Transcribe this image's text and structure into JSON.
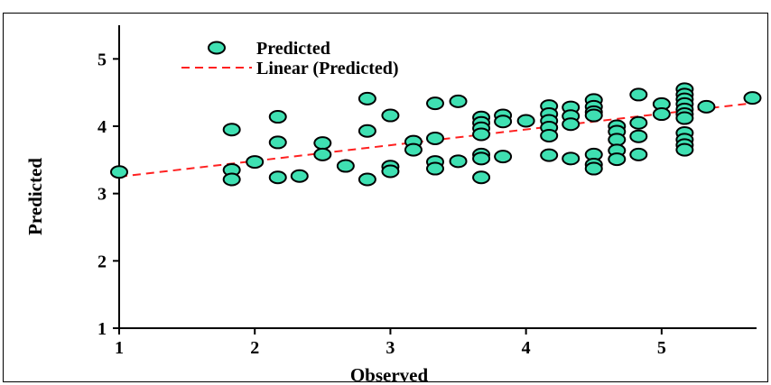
{
  "chart_data": {
    "type": "scatter",
    "xlabel": "Observed",
    "ylabel": "Predicted",
    "xlim": [
      1,
      5.7
    ],
    "ylim": [
      1,
      5.5
    ],
    "xticks": [
      "1",
      "2",
      "3",
      "4",
      "5"
    ],
    "yticks": [
      "1",
      "2",
      "3",
      "4",
      "5"
    ],
    "grid": false,
    "legend_position": "top-left",
    "legend": [
      "Predicted",
      "Linear (Predicted)"
    ],
    "colors": {
      "marker_fill": "#3fe0b2",
      "marker_edge": "#000000",
      "trendline": "#ff2020"
    },
    "series": [
      {
        "name": "Predicted",
        "points": [
          [
            1.0,
            3.32
          ],
          [
            1.83,
            3.95
          ],
          [
            1.83,
            3.35
          ],
          [
            1.83,
            3.21
          ],
          [
            2.0,
            3.47
          ],
          [
            2.17,
            4.14
          ],
          [
            2.17,
            3.76
          ],
          [
            2.17,
            3.24
          ],
          [
            2.33,
            3.26
          ],
          [
            2.5,
            3.75
          ],
          [
            2.5,
            3.58
          ],
          [
            2.67,
            3.41
          ],
          [
            2.83,
            4.41
          ],
          [
            2.83,
            3.93
          ],
          [
            2.83,
            3.21
          ],
          [
            3.0,
            4.16
          ],
          [
            3.0,
            3.4
          ],
          [
            3.0,
            3.33
          ],
          [
            3.17,
            3.77
          ],
          [
            3.17,
            3.65
          ],
          [
            3.33,
            4.34
          ],
          [
            3.33,
            3.82
          ],
          [
            3.33,
            3.47
          ],
          [
            3.33,
            3.37
          ],
          [
            3.5,
            4.37
          ],
          [
            3.5,
            3.48
          ],
          [
            3.67,
            4.13
          ],
          [
            3.67,
            4.05
          ],
          [
            3.67,
            3.97
          ],
          [
            3.67,
            3.88
          ],
          [
            3.67,
            3.58
          ],
          [
            3.67,
            3.52
          ],
          [
            3.67,
            3.24
          ],
          [
            3.83,
            4.16
          ],
          [
            3.83,
            4.07
          ],
          [
            3.83,
            3.55
          ],
          [
            4.0,
            4.08
          ],
          [
            4.17,
            4.3
          ],
          [
            4.17,
            4.18
          ],
          [
            4.17,
            4.08
          ],
          [
            4.17,
            3.98
          ],
          [
            4.17,
            3.86
          ],
          [
            4.17,
            3.57
          ],
          [
            4.33,
            4.28
          ],
          [
            4.33,
            4.15
          ],
          [
            4.33,
            4.03
          ],
          [
            4.33,
            3.52
          ],
          [
            4.5,
            4.39
          ],
          [
            4.5,
            4.29
          ],
          [
            4.5,
            4.21
          ],
          [
            4.5,
            4.16
          ],
          [
            4.5,
            3.58
          ],
          [
            4.5,
            3.43
          ],
          [
            4.5,
            3.37
          ],
          [
            4.67,
            4.0
          ],
          [
            4.67,
            3.92
          ],
          [
            4.67,
            3.8
          ],
          [
            4.67,
            3.64
          ],
          [
            4.67,
            3.51
          ],
          [
            4.83,
            4.47
          ],
          [
            4.83,
            4.05
          ],
          [
            4.83,
            3.85
          ],
          [
            4.83,
            3.58
          ],
          [
            5.0,
            4.33
          ],
          [
            5.0,
            4.18
          ],
          [
            5.17,
            4.55
          ],
          [
            5.17,
            4.47
          ],
          [
            5.17,
            4.4
          ],
          [
            5.17,
            4.33
          ],
          [
            5.17,
            4.25
          ],
          [
            5.17,
            4.18
          ],
          [
            5.17,
            4.12
          ],
          [
            5.17,
            3.9
          ],
          [
            5.17,
            3.8
          ],
          [
            5.17,
            3.72
          ],
          [
            5.17,
            3.65
          ],
          [
            5.33,
            4.29
          ],
          [
            5.67,
            4.42
          ]
        ]
      },
      {
        "name": "Linear (Predicted)",
        "type": "line",
        "style": "dashed",
        "x": [
          1.0,
          5.7
        ],
        "y": [
          3.25,
          4.35
        ]
      }
    ]
  }
}
